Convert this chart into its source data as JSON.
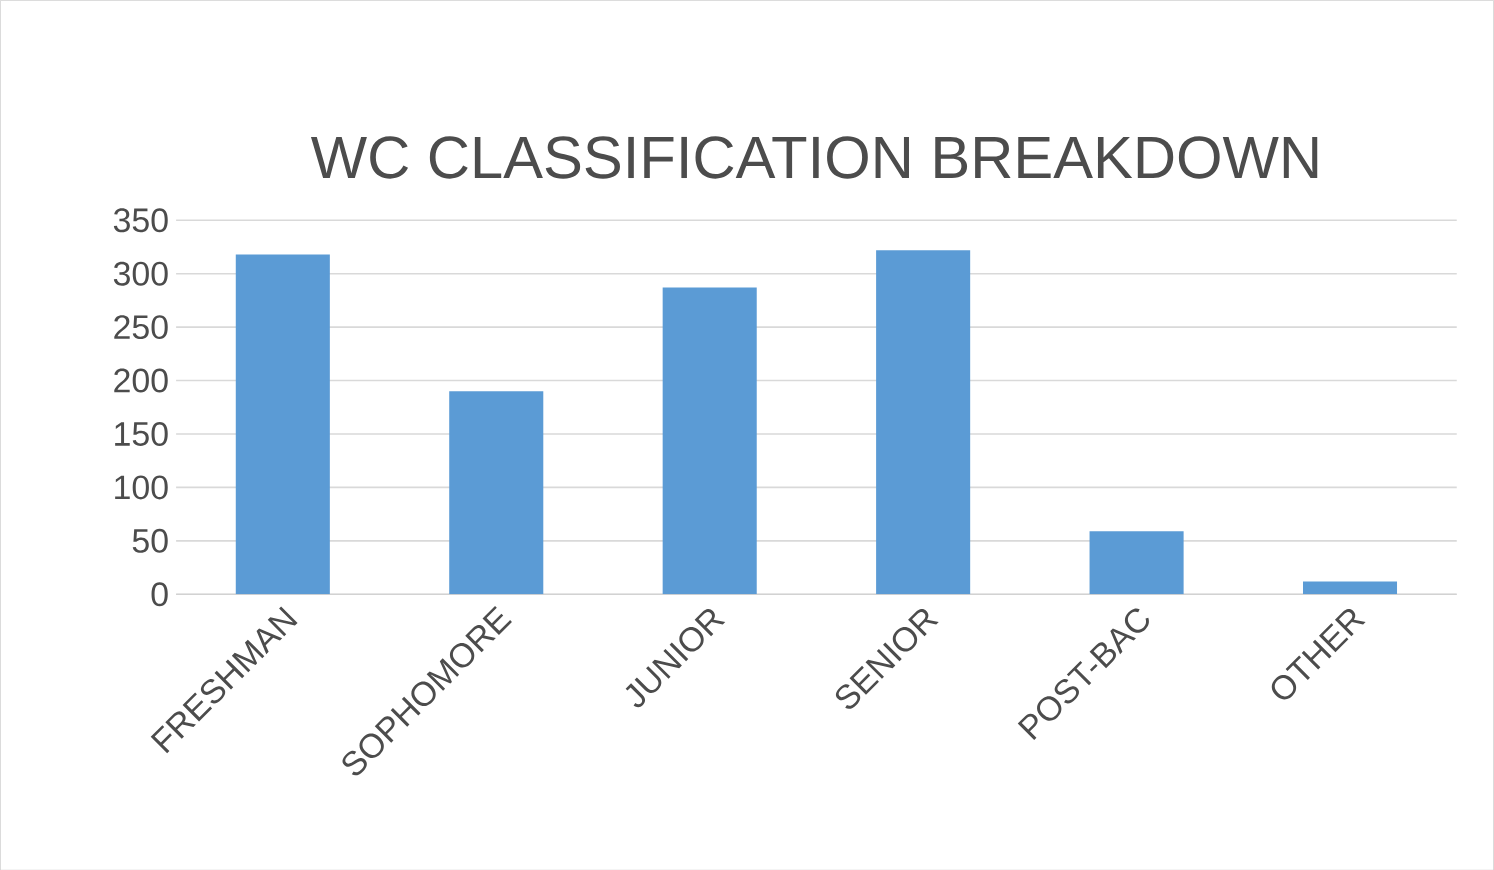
{
  "chart_data": {
    "type": "bar",
    "title": "WC CLASSIFICATION BREAKDOWN",
    "categories": [
      "FRESHMAN",
      "SOPHOMORE",
      "JUNIOR",
      "SENIOR",
      "POST-BAC",
      "OTHER"
    ],
    "values": [
      318,
      190,
      287,
      322,
      59,
      12
    ],
    "color": "#5b9bd5",
    "ylim": [
      0,
      350
    ],
    "yticks": [
      0,
      50,
      100,
      150,
      200,
      250,
      300,
      350
    ],
    "grid": "y"
  }
}
